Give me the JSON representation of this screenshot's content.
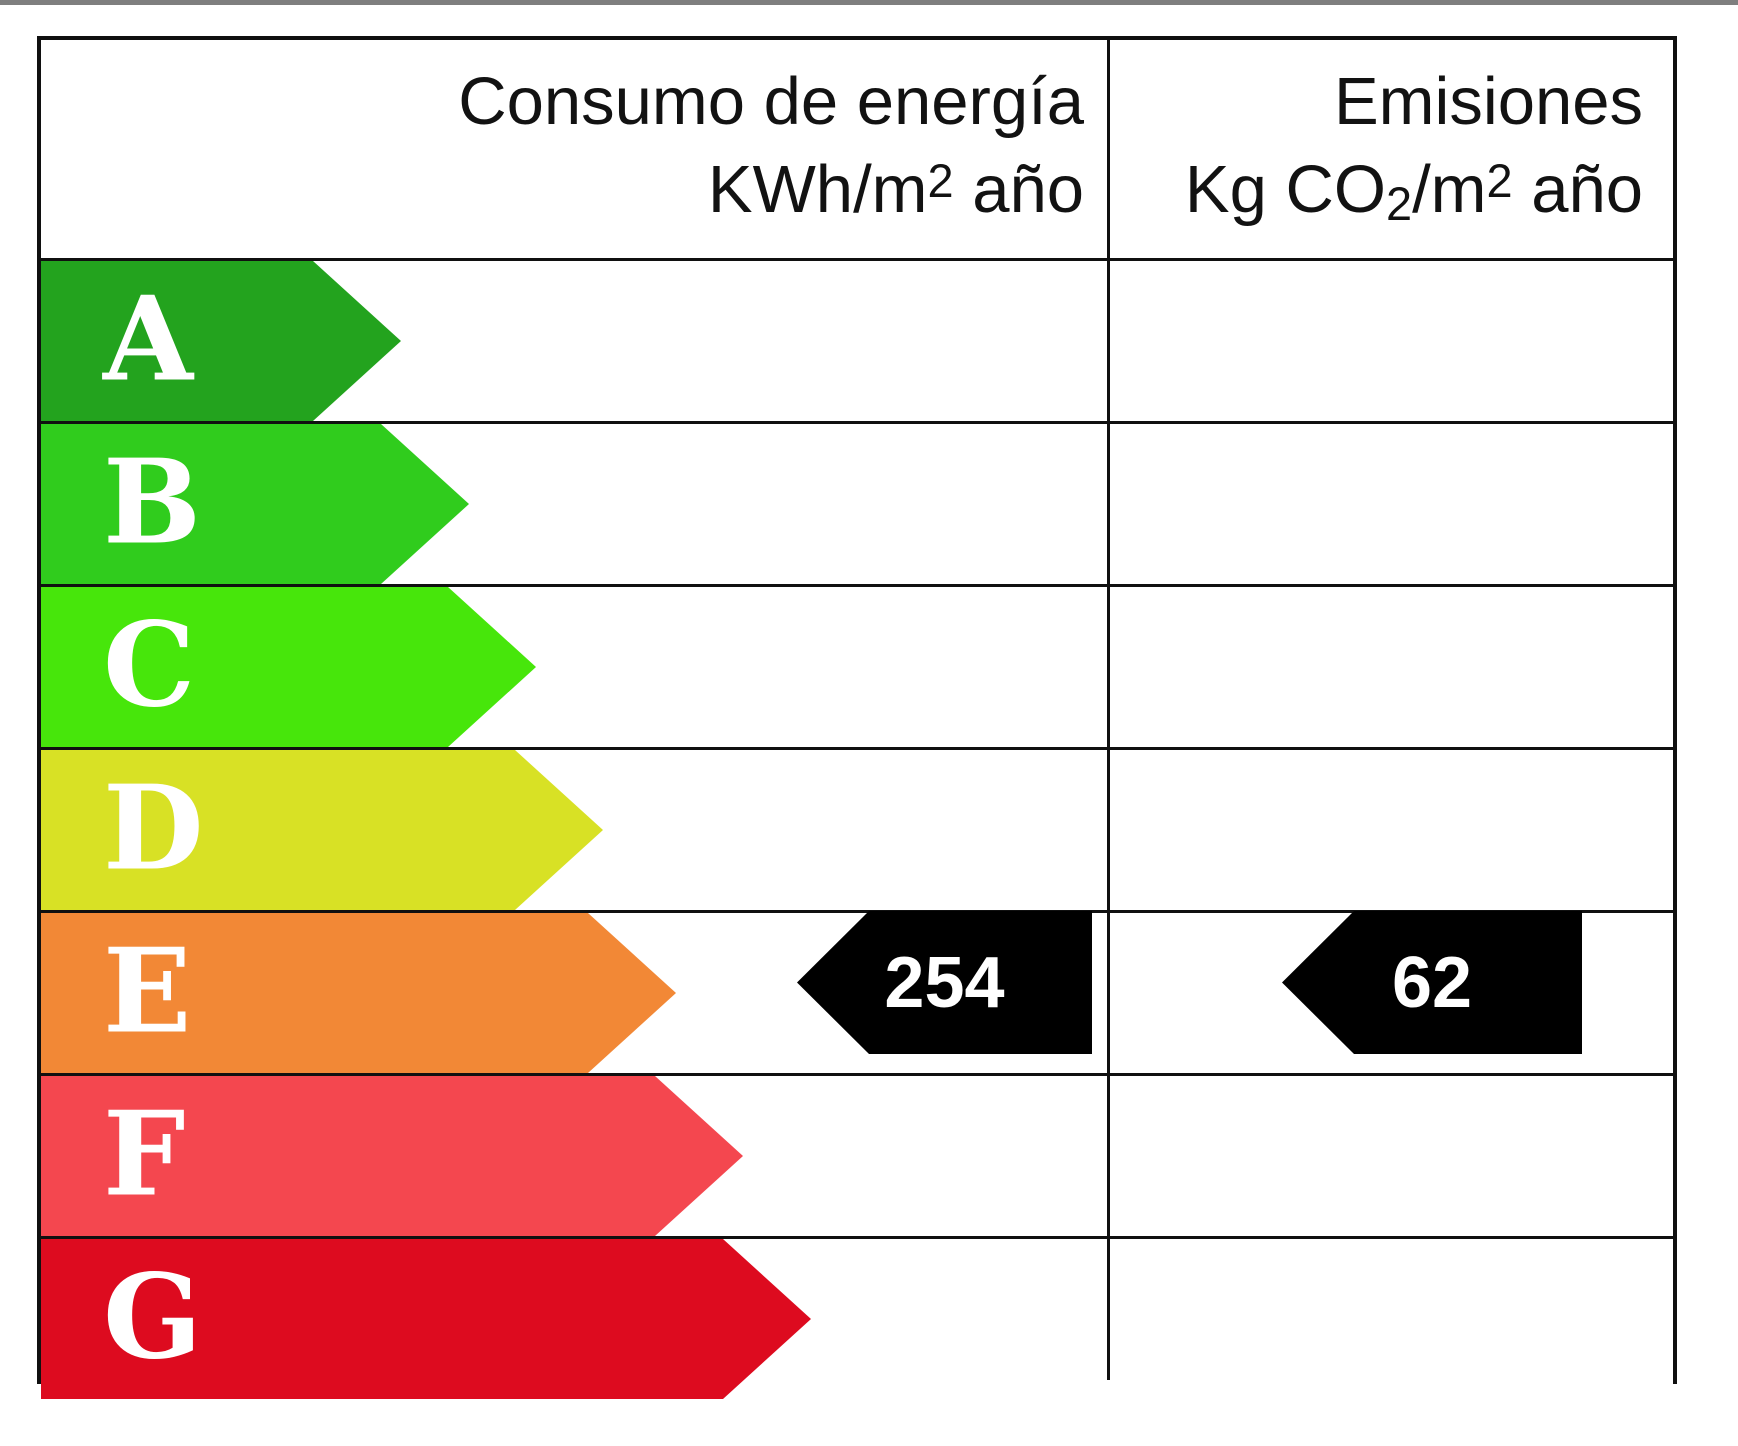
{
  "header": {
    "consumption": {
      "title": "Consumo de energía",
      "unit_prefix": "KWh/m",
      "unit_sup": "2",
      "unit_suffix": " año"
    },
    "emissions": {
      "title": "Emisiones",
      "unit_prefix": "Kg CO",
      "unit_sub": "2",
      "unit_mid": "/m",
      "unit_sup": "2",
      "unit_suffix": " año"
    }
  },
  "bands": [
    {
      "label": "A",
      "color": "#23a31e",
      "tip": 360
    },
    {
      "label": "B",
      "color": "#30cc1d",
      "tip": 428
    },
    {
      "label": "C",
      "color": "#47e60b",
      "tip": 495
    },
    {
      "label": "D",
      "color": "#d8e125",
      "tip": 562
    },
    {
      "label": "E",
      "color": "#f28836",
      "tip": 635
    },
    {
      "label": "F",
      "color": "#f4474f",
      "tip": 702
    },
    {
      "label": "G",
      "color": "#dd0b1f",
      "tip": 770
    }
  ],
  "ratings": {
    "consumption_value": "254",
    "emissions_value": "62",
    "rated_band": "E",
    "marker_color": "#000000",
    "marker_text_color": "#ffffff",
    "band_letter_color": "#ffffff"
  },
  "colors": {
    "border": "#101010",
    "background": "#ffffff",
    "top_edge_bar": "#7f7f7f",
    "header_text": "#121212"
  },
  "chart_data": {
    "type": "bar",
    "orientation": "horizontal",
    "categories": [
      "A",
      "B",
      "C",
      "D",
      "E",
      "F",
      "G"
    ],
    "series": [
      {
        "name": "band_arrow_length_px",
        "values": [
          360,
          428,
          495,
          562,
          635,
          702,
          770
        ]
      }
    ],
    "band_colors": [
      "#23a31e",
      "#30cc1d",
      "#47e60b",
      "#d8e125",
      "#f28836",
      "#f4474f",
      "#dd0b1f"
    ],
    "columns": [
      "Consumo de energía KWh/m2 año",
      "Emisiones Kg CO2/m2 año"
    ],
    "indicated_values": [
      {
        "column": "Consumo de energía KWh/m2 año",
        "value": 254,
        "band": "E"
      },
      {
        "column": "Emisiones Kg CO2/m2 año",
        "value": 62,
        "band": "E"
      }
    ],
    "xlabel": "",
    "ylabel": "",
    "legend": false,
    "grid": false
  }
}
